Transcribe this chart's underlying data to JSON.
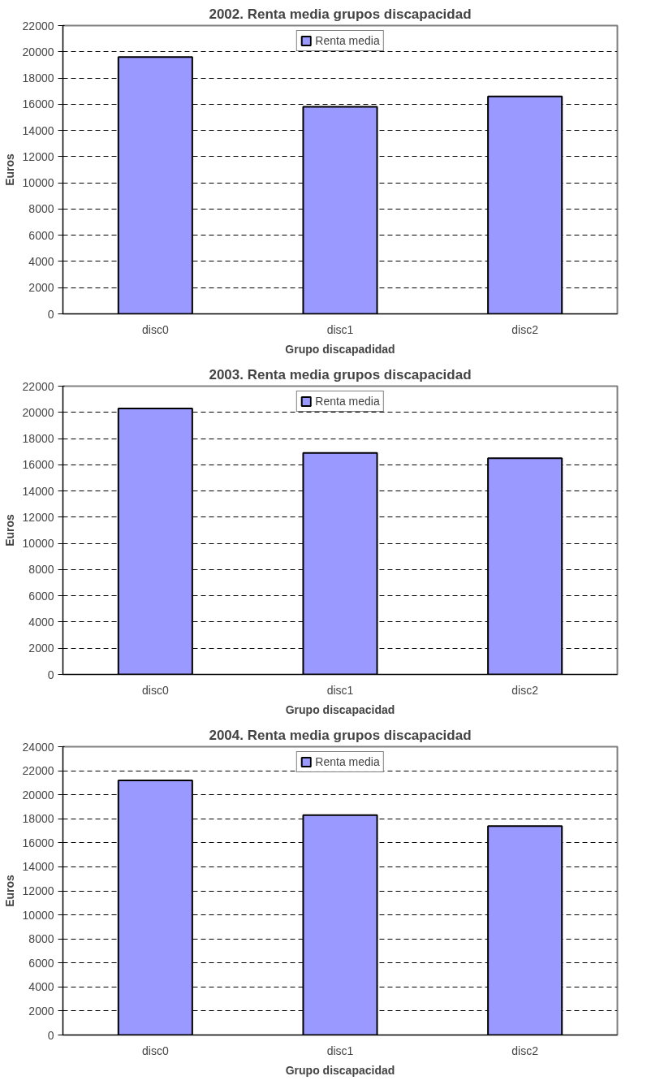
{
  "chart_data": [
    {
      "type": "bar",
      "title": "2002. Renta media grupos discapacidad",
      "xlabel": "Grupo discapadidad",
      "ylabel": "Euros",
      "categories": [
        "disc0",
        "disc1",
        "disc2"
      ],
      "series": [
        {
          "name": "Renta media",
          "color": "#9999ff",
          "values": [
            19600,
            15800,
            16600
          ]
        }
      ],
      "ylim": [
        0,
        22000
      ],
      "yticks": [
        0,
        2000,
        4000,
        6000,
        8000,
        10000,
        12000,
        14000,
        16000,
        18000,
        20000,
        22000
      ],
      "grid": "y",
      "legend": "top"
    },
    {
      "type": "bar",
      "title": "2003. Renta media grupos discapacidad",
      "xlabel": "Grupo discapacidad",
      "ylabel": "Euros",
      "categories": [
        "disc0",
        "disc1",
        "disc2"
      ],
      "series": [
        {
          "name": "Renta media",
          "color": "#9999ff",
          "values": [
            20300,
            16900,
            16500
          ]
        }
      ],
      "ylim": [
        0,
        22000
      ],
      "yticks": [
        0,
        2000,
        4000,
        6000,
        8000,
        10000,
        12000,
        14000,
        16000,
        18000,
        20000,
        22000
      ],
      "grid": "y",
      "legend": "top"
    },
    {
      "type": "bar",
      "title": "2004. Renta media grupos discapacidad",
      "xlabel": "Grupo discapacidad",
      "ylabel": "Euros",
      "categories": [
        "disc0",
        "disc1",
        "disc2"
      ],
      "series": [
        {
          "name": "Renta media",
          "color": "#9999ff",
          "values": [
            21200,
            18300,
            17400
          ]
        }
      ],
      "ylim": [
        0,
        24000
      ],
      "yticks": [
        0,
        2000,
        4000,
        6000,
        8000,
        10000,
        12000,
        14000,
        16000,
        18000,
        20000,
        22000,
        24000
      ],
      "grid": "y",
      "legend": "top"
    }
  ]
}
